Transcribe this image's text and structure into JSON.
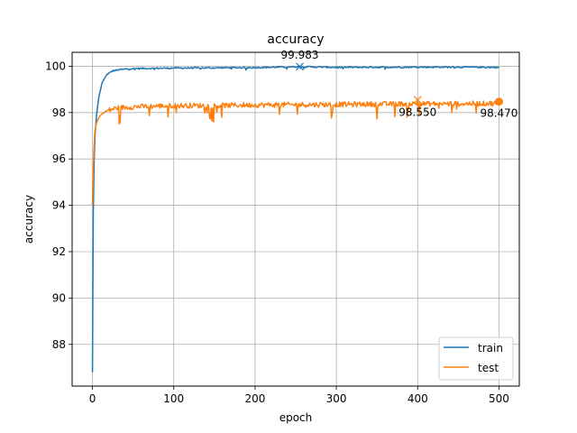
{
  "chart_data": {
    "type": "line",
    "title": "accuracy",
    "xlabel": "epoch",
    "ylabel": "accuracy",
    "xlim": [
      -25,
      525
    ],
    "ylim": [
      86.2,
      100.6
    ],
    "xticks": [
      0,
      100,
      200,
      300,
      400,
      500
    ],
    "yticks": [
      88,
      90,
      92,
      94,
      96,
      98,
      100
    ],
    "grid": true,
    "legend_position": "lower-right",
    "series": [
      {
        "name": "train",
        "color": "#1f77b4",
        "points": [
          [
            0,
            86.8
          ],
          [
            1,
            93.6
          ],
          [
            2,
            95.8
          ],
          [
            3,
            96.9
          ],
          [
            5,
            97.9
          ],
          [
            8,
            98.7
          ],
          [
            12,
            99.3
          ],
          [
            18,
            99.65
          ],
          [
            25,
            99.8
          ],
          [
            35,
            99.86
          ],
          [
            50,
            99.9
          ],
          [
            100,
            99.92
          ],
          [
            150,
            99.93
          ],
          [
            200,
            99.94
          ],
          [
            255,
            99.98
          ],
          [
            300,
            99.95
          ],
          [
            400,
            99.96
          ],
          [
            450,
            99.96
          ],
          [
            500,
            99.95
          ]
        ],
        "noise": 0.03,
        "max_marker": {
          "x": 255,
          "y": 99.983,
          "label": "99.983"
        }
      },
      {
        "name": "test",
        "color": "#ff7f0e",
        "points": [
          [
            0,
            94.0
          ],
          [
            1,
            95.6
          ],
          [
            2,
            96.6
          ],
          [
            3,
            97.2
          ],
          [
            5,
            97.55
          ],
          [
            8,
            97.8
          ],
          [
            12,
            97.95
          ],
          [
            20,
            98.1
          ],
          [
            30,
            98.2
          ],
          [
            50,
            98.25
          ],
          [
            100,
            98.3
          ],
          [
            150,
            98.3
          ],
          [
            200,
            98.33
          ],
          [
            300,
            98.35
          ],
          [
            400,
            98.38
          ],
          [
            450,
            98.38
          ],
          [
            500,
            98.4
          ]
        ],
        "noise": 0.11,
        "max_marker": {
          "x": 400,
          "y": 98.55,
          "label": "98.550"
        },
        "last_marker": {
          "x": 500,
          "y": 98.47,
          "label": "98.470"
        }
      }
    ]
  }
}
